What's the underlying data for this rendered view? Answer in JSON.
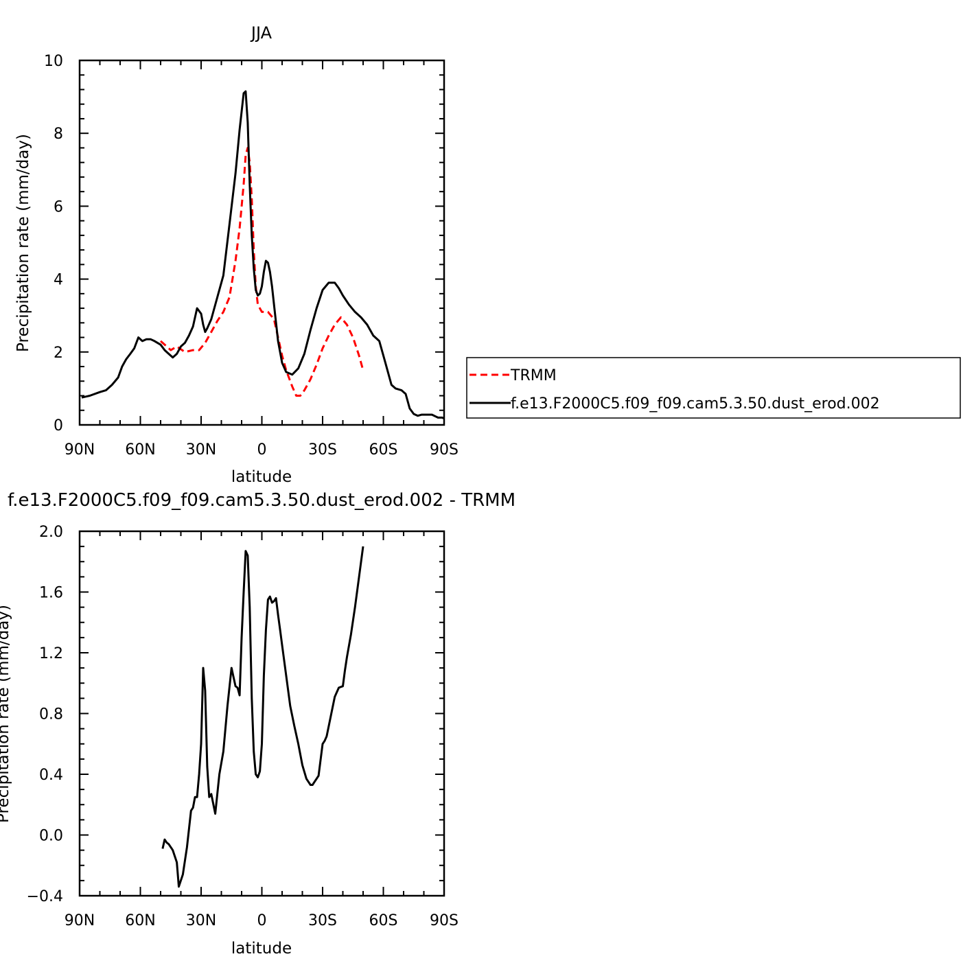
{
  "chart_data": [
    {
      "type": "line",
      "title": "JJA",
      "xlabel": "latitude",
      "ylabel": "Precipitation rate (mm/day)",
      "xticks": [
        {
          "value": -90,
          "label": "90N"
        },
        {
          "value": -60,
          "label": "60N"
        },
        {
          "value": -30,
          "label": "30N"
        },
        {
          "value": 0,
          "label": "0"
        },
        {
          "value": 30,
          "label": "30S"
        },
        {
          "value": 60,
          "label": "60S"
        },
        {
          "value": 90,
          "label": "90S"
        }
      ],
      "xlim": [
        -90,
        90
      ],
      "ylim": [
        0,
        10
      ],
      "yticks": [
        "0",
        "2",
        "4",
        "6",
        "8",
        "10"
      ],
      "legend_position": "right",
      "series": [
        {
          "name": "TRMM",
          "color": "#ff0000",
          "dash": "dashed",
          "x": [
            -50,
            -45,
            -42,
            -38,
            -34,
            -31,
            -28,
            -25,
            -22,
            -19,
            -16,
            -13,
            -11,
            -9,
            -8,
            -7,
            -6,
            -5,
            -4,
            -3,
            -2,
            0,
            3,
            6,
            8,
            10,
            12,
            15,
            17,
            19,
            21,
            24,
            27,
            30,
            33,
            36,
            39,
            42,
            45,
            48,
            50
          ],
          "y": [
            2.3,
            2.05,
            2.15,
            2.0,
            2.05,
            2.05,
            2.25,
            2.55,
            2.85,
            3.1,
            3.5,
            4.5,
            5.4,
            6.6,
            7.4,
            7.6,
            7.2,
            6.2,
            4.8,
            3.8,
            3.3,
            3.1,
            3.1,
            2.9,
            2.4,
            1.9,
            1.5,
            1.05,
            0.8,
            0.8,
            0.95,
            1.25,
            1.65,
            2.1,
            2.45,
            2.75,
            2.95,
            2.75,
            2.4,
            1.9,
            1.5
          ]
        },
        {
          "name": "f.e13.F2000C5.f09_f09.cam5.3.50.dust_erod.002",
          "color": "#000000",
          "dash": "solid",
          "x": [
            -89,
            -85,
            -80,
            -77,
            -74,
            -71,
            -69,
            -67,
            -65,
            -63,
            -61,
            -59,
            -57,
            -55,
            -53,
            -50,
            -48,
            -46,
            -44,
            -42,
            -40,
            -38,
            -36,
            -34,
            -32,
            -30,
            -29,
            -28,
            -27,
            -25,
            -22,
            -19,
            -16,
            -13,
            -11,
            -9,
            -8,
            -7,
            -6,
            -5,
            -4,
            -3,
            -2,
            -1,
            0,
            1,
            2,
            3,
            4,
            5,
            6,
            8,
            10,
            12,
            15,
            18,
            21,
            24,
            27,
            30,
            33,
            36,
            38,
            40,
            43,
            46,
            49,
            52,
            55,
            58,
            61,
            64,
            66,
            69,
            71,
            73,
            75,
            77,
            79,
            81,
            84,
            87,
            89,
            90
          ],
          "y": [
            0.75,
            0.8,
            0.9,
            0.95,
            1.1,
            1.3,
            1.6,
            1.8,
            1.95,
            2.1,
            2.4,
            2.3,
            2.35,
            2.35,
            2.3,
            2.2,
            2.05,
            1.95,
            1.85,
            1.95,
            2.15,
            2.25,
            2.45,
            2.7,
            3.2,
            3.05,
            2.75,
            2.55,
            2.65,
            2.9,
            3.5,
            4.1,
            5.5,
            6.9,
            8.1,
            9.1,
            9.15,
            8.3,
            6.6,
            5.2,
            4.3,
            3.7,
            3.55,
            3.6,
            3.8,
            4.2,
            4.5,
            4.45,
            4.2,
            3.8,
            3.3,
            2.3,
            1.7,
            1.45,
            1.38,
            1.55,
            1.95,
            2.6,
            3.2,
            3.7,
            3.9,
            3.9,
            3.75,
            3.55,
            3.3,
            3.1,
            2.95,
            2.75,
            2.45,
            2.3,
            1.7,
            1.1,
            1.0,
            0.95,
            0.85,
            0.45,
            0.3,
            0.25,
            0.28,
            0.28,
            0.28,
            0.2,
            0.2,
            0.18
          ]
        }
      ]
    },
    {
      "type": "line",
      "title": "f.e13.F2000C5.f09_f09.cam5.3.50.dust_erod.002 - TRMM",
      "xlabel": "latitude",
      "ylabel": "Precipitation rate (mm/day)",
      "xticks": [
        {
          "value": -90,
          "label": "90N"
        },
        {
          "value": -60,
          "label": "60N"
        },
        {
          "value": -30,
          "label": "30N"
        },
        {
          "value": 0,
          "label": "0"
        },
        {
          "value": 30,
          "label": "30S"
        },
        {
          "value": 60,
          "label": "60S"
        },
        {
          "value": 90,
          "label": "90S"
        }
      ],
      "xlim": [
        -90,
        90
      ],
      "ylim": [
        -0.4,
        2.0
      ],
      "yticks": [
        "−0.4",
        "0.0",
        "0.4",
        "0.8",
        "1.2",
        "1.6",
        "2.0"
      ],
      "series": [
        {
          "color": "#000000",
          "dash": "solid",
          "x": [
            -49,
            -48,
            -47,
            -46,
            -44,
            -42,
            -41,
            -39,
            -37,
            -35,
            -34,
            -33,
            -32,
            -31,
            -30,
            -29,
            -28,
            -27,
            -26,
            -25,
            -23,
            -21,
            -19,
            -17,
            -15,
            -13,
            -12,
            -11,
            -10,
            -9,
            -8,
            -7,
            -6,
            -5,
            -4,
            -3,
            -2,
            -1,
            0,
            1,
            2,
            3,
            4,
            5,
            6,
            7,
            8,
            9,
            10,
            12,
            14,
            16,
            18,
            20,
            22,
            24,
            25,
            26,
            27,
            28,
            30,
            31,
            32,
            34,
            36,
            38,
            40,
            41,
            42,
            44,
            46,
            48,
            50
          ],
          "y": [
            -0.09,
            -0.03,
            -0.05,
            -0.06,
            -0.1,
            -0.18,
            -0.34,
            -0.26,
            -0.08,
            0.16,
            0.18,
            0.25,
            0.25,
            0.4,
            0.6,
            1.1,
            0.95,
            0.45,
            0.25,
            0.27,
            0.14,
            0.4,
            0.55,
            0.85,
            1.1,
            0.98,
            0.97,
            0.92,
            1.3,
            1.6,
            1.87,
            1.84,
            1.5,
            0.9,
            0.55,
            0.4,
            0.38,
            0.42,
            0.6,
            1.05,
            1.35,
            1.55,
            1.57,
            1.53,
            1.54,
            1.56,
            1.45,
            1.35,
            1.25,
            1.05,
            0.85,
            0.72,
            0.6,
            0.46,
            0.37,
            0.33,
            0.33,
            0.35,
            0.37,
            0.39,
            0.6,
            0.62,
            0.65,
            0.78,
            0.91,
            0.97,
            0.98,
            1.08,
            1.17,
            1.32,
            1.5,
            1.7,
            1.9
          ]
        }
      ]
    }
  ]
}
